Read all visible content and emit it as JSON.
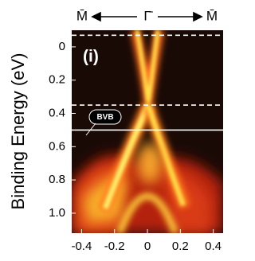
{
  "chart_data": {
    "type": "heatmap",
    "panel_label": "(i)",
    "top_labels": [
      "M̄",
      "Γ̄",
      "M̄"
    ],
    "y_label": "Binding Energy (eV)",
    "annotation": "BVB",
    "xlim": [
      -0.46,
      0.46
    ],
    "ylim": [
      -0.1,
      1.12
    ],
    "y_inverted": true,
    "xticks": [
      -0.4,
      -0.2,
      0,
      0.2,
      0.4
    ],
    "yticks": [
      0,
      0.2,
      0.4,
      0.6,
      0.8,
      {
        "value": 1,
        "label": "1.0"
      }
    ],
    "reference_lines": [
      {
        "value": -0.07,
        "style": "dashed",
        "color": "#ffffff"
      },
      {
        "value": 0.35,
        "style": "dashed",
        "color": "#ffffff"
      },
      {
        "value": 0.5,
        "style": "solid",
        "color": "#ffffff"
      }
    ]
  }
}
